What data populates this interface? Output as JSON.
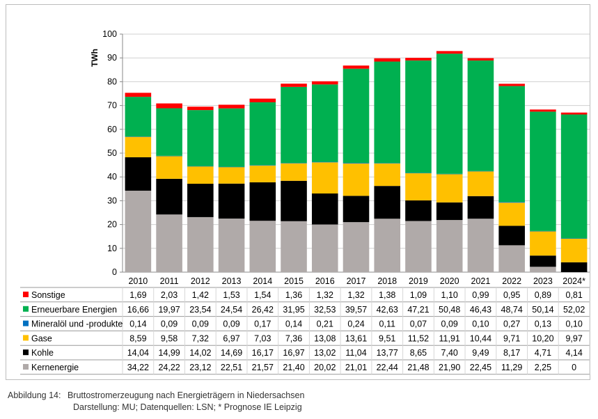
{
  "chart_data": {
    "type": "bar",
    "stacked": true,
    "ylabel": "TWh",
    "ylim": [
      0,
      100
    ],
    "yticks": [
      0,
      10,
      20,
      30,
      40,
      50,
      60,
      70,
      80,
      90,
      100
    ],
    "grid": true,
    "legend": "table-left",
    "categories": [
      "2010",
      "2011",
      "2012",
      "2013",
      "2014",
      "2015",
      "2016",
      "2017",
      "2018",
      "2019",
      "2020",
      "2021",
      "2022",
      "2023",
      "2024*"
    ],
    "series": [
      {
        "name": "Kernenergie",
        "color": "#b0aaa9",
        "values": [
          34.22,
          24.22,
          23.12,
          22.51,
          21.57,
          21.4,
          20.02,
          21.01,
          22.44,
          21.48,
          21.9,
          22.45,
          11.29,
          2.25,
          0
        ],
        "labels": [
          "34,22",
          "24,22",
          "23,12",
          "22,51",
          "21,57",
          "21,40",
          "20,02",
          "21,01",
          "22,44",
          "21,48",
          "21,90",
          "22,45",
          "11,29",
          "2,25",
          "0"
        ]
      },
      {
        "name": "Kohle",
        "color": "#000000",
        "values": [
          14.04,
          14.99,
          14.02,
          14.69,
          16.17,
          16.97,
          13.02,
          11.04,
          13.77,
          8.65,
          7.4,
          9.49,
          8.17,
          4.71,
          4.14
        ],
        "labels": [
          "14,04",
          "14,99",
          "14,02",
          "14,69",
          "16,17",
          "16,97",
          "13,02",
          "11,04",
          "13,77",
          "8,65",
          "7,40",
          "9,49",
          "8,17",
          "4,71",
          "4,14"
        ]
      },
      {
        "name": "Gase",
        "color": "#ffc000",
        "values": [
          8.59,
          9.58,
          7.32,
          6.97,
          7.03,
          7.36,
          13.08,
          13.61,
          9.51,
          11.52,
          11.91,
          10.44,
          9.71,
          10.2,
          9.97
        ],
        "labels": [
          "8,59",
          "9,58",
          "7,32",
          "6,97",
          "7,03",
          "7,36",
          "13,08",
          "13,61",
          "9,51",
          "11,52",
          "11,91",
          "10,44",
          "9,71",
          "10,20",
          "9,97"
        ]
      },
      {
        "name": "Mineralöl und -produkte",
        "color": "#0070c0",
        "values": [
          0.14,
          0.09,
          0.09,
          0.09,
          0.17,
          0.14,
          0.21,
          0.24,
          0.11,
          0.07,
          0.09,
          0.1,
          0.27,
          0.13,
          0.1
        ],
        "labels": [
          "0,14",
          "0,09",
          "0,09",
          "0,09",
          "0,17",
          "0,14",
          "0,21",
          "0,24",
          "0,11",
          "0,07",
          "0,09",
          "0,10",
          "0,27",
          "0,13",
          "0,10"
        ]
      },
      {
        "name": "Erneuerbare Energien",
        "color": "#00b050",
        "values": [
          16.66,
          19.97,
          23.54,
          24.54,
          26.42,
          31.95,
          32.53,
          39.57,
          42.63,
          47.21,
          50.48,
          46.43,
          48.74,
          50.14,
          52.02
        ],
        "labels": [
          "16,66",
          "19,97",
          "23,54",
          "24,54",
          "26,42",
          "31,95",
          "32,53",
          "39,57",
          "42,63",
          "47,21",
          "50,48",
          "46,43",
          "48,74",
          "50,14",
          "52,02"
        ]
      },
      {
        "name": "Sonstige",
        "color": "#ff0000",
        "values": [
          1.69,
          2.03,
          1.42,
          1.53,
          1.54,
          1.36,
          1.32,
          1.32,
          1.38,
          1.09,
          1.1,
          0.99,
          0.95,
          0.89,
          0.81
        ],
        "labels": [
          "1,69",
          "2,03",
          "1,42",
          "1,53",
          "1,54",
          "1,36",
          "1,32",
          "1,32",
          "1,38",
          "1,09",
          "1,10",
          "0,99",
          "0,95",
          "0,89",
          "0,81"
        ]
      }
    ],
    "table_row_order": [
      "Sonstige",
      "Erneuerbare Energien",
      "Mineralöl und -produkte",
      "Gase",
      "Kohle",
      "Kernenergie"
    ]
  },
  "caption": {
    "label": "Abbildung 14:",
    "title": "Bruttostromerzeugung nach Energieträgern in Niedersachsen",
    "source": "Darstellung: MU; Datenquellen: LSN; * Prognose IE Leipzig"
  }
}
